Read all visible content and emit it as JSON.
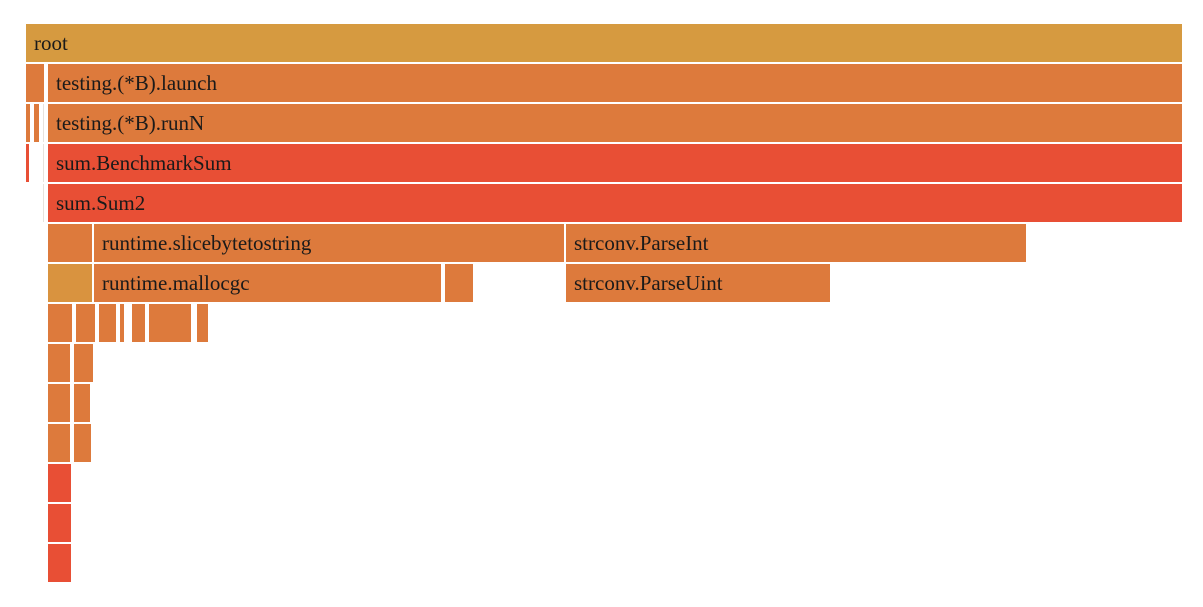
{
  "colors": {
    "root": "#d69a40",
    "orange": "#dd7a3c",
    "red": "#e84f35",
    "light": "#e7e2dd",
    "gold": "#d9933f"
  },
  "frames": [
    {
      "label": "root",
      "depth": 0,
      "start": 0,
      "end": 1158,
      "color": "root"
    },
    {
      "label": "",
      "depth": 1,
      "start": 0,
      "end": 20,
      "color": "orange"
    },
    {
      "label": "testing.(*B).launch",
      "depth": 1,
      "start": 22,
      "end": 1158,
      "color": "orange"
    },
    {
      "label": "",
      "depth": 2,
      "start": 0,
      "end": 6,
      "color": "orange"
    },
    {
      "label": "",
      "depth": 2,
      "start": 8,
      "end": 15,
      "color": "orange"
    },
    {
      "label": "",
      "depth": 2,
      "start": 17,
      "end": 20,
      "color": "light"
    },
    {
      "label": "testing.(*B).runN",
      "depth": 2,
      "start": 22,
      "end": 1158,
      "color": "orange"
    },
    {
      "label": "",
      "depth": 3,
      "start": 0,
      "end": 5,
      "color": "red"
    },
    {
      "label": "",
      "depth": 3,
      "start": 17,
      "end": 20,
      "color": "light"
    },
    {
      "label": "sum.BenchmarkSum",
      "depth": 3,
      "start": 22,
      "end": 1158,
      "color": "red"
    },
    {
      "label": "",
      "depth": 4,
      "start": 0,
      "end": 2,
      "color": "light"
    },
    {
      "label": "",
      "depth": 4,
      "start": 17,
      "end": 20,
      "color": "light"
    },
    {
      "label": "sum.Sum2",
      "depth": 4,
      "start": 22,
      "end": 1158,
      "color": "red"
    },
    {
      "label": "",
      "depth": 5,
      "start": 0,
      "end": 2,
      "color": "light"
    },
    {
      "label": "",
      "depth": 5,
      "start": 22,
      "end": 68,
      "color": "orange"
    },
    {
      "label": "runtime.slicebytetostring",
      "depth": 5,
      "start": 68,
      "end": 540,
      "color": "orange"
    },
    {
      "label": "strconv.ParseInt",
      "depth": 5,
      "start": 540,
      "end": 1002,
      "color": "orange"
    },
    {
      "label": "",
      "depth": 6,
      "start": 0,
      "end": 2,
      "color": "light"
    },
    {
      "label": "",
      "depth": 6,
      "start": 22,
      "end": 68,
      "color": "gold"
    },
    {
      "label": "runtime.mallocgc",
      "depth": 6,
      "start": 68,
      "end": 417,
      "color": "orange"
    },
    {
      "label": "",
      "depth": 6,
      "start": 419,
      "end": 449,
      "color": "orange"
    },
    {
      "label": "strconv.ParseUint",
      "depth": 6,
      "start": 540,
      "end": 806,
      "color": "orange"
    },
    {
      "label": "",
      "depth": 7,
      "start": 22,
      "end": 48,
      "color": "orange"
    },
    {
      "label": "",
      "depth": 7,
      "start": 50,
      "end": 71,
      "color": "orange"
    },
    {
      "label": "",
      "depth": 7,
      "start": 73,
      "end": 92,
      "color": "orange"
    },
    {
      "label": "",
      "depth": 7,
      "start": 94,
      "end": 100,
      "color": "orange"
    },
    {
      "label": "",
      "depth": 7,
      "start": 102,
      "end": 104,
      "color": "orange"
    },
    {
      "label": "",
      "depth": 7,
      "start": 106,
      "end": 121,
      "color": "orange"
    },
    {
      "label": "",
      "depth": 7,
      "start": 123,
      "end": 167,
      "color": "orange"
    },
    {
      "label": "",
      "depth": 7,
      "start": 171,
      "end": 184,
      "color": "orange"
    },
    {
      "label": "",
      "depth": 8,
      "start": 22,
      "end": 46,
      "color": "orange"
    },
    {
      "label": "",
      "depth": 8,
      "start": 48,
      "end": 69,
      "color": "orange"
    },
    {
      "label": "",
      "depth": 8,
      "start": 102,
      "end": 104,
      "color": "orange"
    },
    {
      "label": "",
      "depth": 9,
      "start": 22,
      "end": 46,
      "color": "orange"
    },
    {
      "label": "",
      "depth": 9,
      "start": 48,
      "end": 66,
      "color": "orange"
    },
    {
      "label": "",
      "depth": 9,
      "start": 102,
      "end": 104,
      "color": "orange"
    },
    {
      "label": "",
      "depth": 10,
      "start": 22,
      "end": 46,
      "color": "orange"
    },
    {
      "label": "",
      "depth": 10,
      "start": 48,
      "end": 67,
      "color": "orange"
    },
    {
      "label": "",
      "depth": 10,
      "start": 102,
      "end": 104,
      "color": "orange"
    },
    {
      "label": "",
      "depth": 11,
      "start": 22,
      "end": 47,
      "color": "red"
    },
    {
      "label": "",
      "depth": 11,
      "start": 102,
      "end": 104,
      "color": "orange"
    },
    {
      "label": "",
      "depth": 12,
      "start": 22,
      "end": 47,
      "color": "red"
    },
    {
      "label": "",
      "depth": 12,
      "start": 102,
      "end": 104,
      "color": "light"
    },
    {
      "label": "",
      "depth": 13,
      "start": 22,
      "end": 47,
      "color": "red"
    }
  ]
}
